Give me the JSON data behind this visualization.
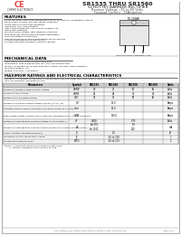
{
  "bg_color": "#f0ede8",
  "page_bg": "#f0ede8",
  "ce_color": "#dd4444",
  "company_name": "CHERRY ELECTRONICS",
  "title": "SR1535 THRU SR1560",
  "subtitle": "SCHOTTKY BARRIER RECTIFIER",
  "subtitle2": "Reverse Voltage - 35 to 60 Volts",
  "subtitle3": "Forward Current - 15Amperes",
  "features_title": "FEATURES",
  "features": [
    "Plastic packaged Low Characteristic Resistance, For monthly Qualification tests in",
    "Metal silicon junction, majority carrier conduction",
    "Guard ring for overvoltage protection",
    "Low power loss, high efficiency",
    "High current capability, Low forward voltage drop",
    "High surge capability",
    "For use in dual voltage, high frequency inverters",
    "Free wheeling, and polarity protection applications",
    "Glass passivation construction",
    "High temperature soldering guaranteed 250/10 seconds",
    "0.375 in lead lengths at 5 lbs tension",
    "2 Plastic insulation structure Common Cathode"
  ],
  "mech_title": "MECHANICAL DATA",
  "mech": [
    "Case: JEDEC DO-220AB molded plastic body",
    "Termination: heat solderable per MIL-STD-750 method 2026",
    "Polarity: As marked for rectifier indication Symbol (cathode, KGRID indicator)",
    "Mounting Position: Any",
    "Weight: 0.08 oz/cc. 1.89 grams"
  ],
  "max_title": "MAXIMUM RATINGS AND ELECTRICAL CHARACTERISTICS",
  "max_note1": "Ratings at 25C ambient temperature unless otherwise specified. Single phase,half wave resistive or inductive",
  "max_note2": "load. For capacitive load derate by 20%",
  "col_headers": [
    "Parameters",
    "Symbol",
    "SR1535",
    "SR1540",
    "SR1550",
    "SR1560",
    "Units"
  ],
  "rows": [
    [
      "Maximum repetitive peak reverse voltage",
      "VRRM",
      "35",
      "40",
      "50",
      "60",
      "Volts"
    ],
    [
      "Maximum RMS voltage",
      "VRMS",
      "25",
      "28",
      "35",
      "42",
      "Volts"
    ],
    [
      "Maximum DC blocking voltage",
      "VDC",
      "35",
      "40",
      "50",
      "60",
      "Volts"
    ],
    [
      "Maximum average forward rectified current (At TC=75)",
      "IO",
      "",
      "15.0",
      "",
      "",
      "Amps"
    ],
    [
      "Repetitive peak forward current(per one amp density at Tj=150)",
      "Iorm",
      "",
      "15.0",
      "",
      "",
      "Amps"
    ],
    [
      "Peak forward surge current 8.3ms single half sinusoidal pulse (At 25C minimum)",
      "IFSM",
      "",
      "150.0",
      "",
      "",
      "Amps"
    ],
    [
      "Maximum instantaneous forward voltage at 15.0A(Note 1)",
      "VF",
      "0.600",
      "",
      "0.75",
      "",
      "Volts"
    ],
    [
      "Maximum instantaneous reverse current at rated DC blocking voltage(Note 1)",
      "IR",
      "At 25C\nAt 100C",
      "",
      "1.0\n200",
      "",
      "mA"
    ],
    [
      "Typical junction capacitance(Note 2)",
      "Cj",
      "",
      "2.5",
      "",
      "",
      "pF"
    ],
    [
      "Operating junction temperature range",
      "Tj",
      "",
      "-55 to 150",
      "",
      "",
      "C"
    ],
    [
      "Storage temperature range",
      "TSTG",
      "",
      "-55 to 175",
      "",
      "",
      "C"
    ]
  ],
  "note1": "NOTE: 1. Pulse test: 300us pulse width 1% duty cycle",
  "note2": "       2. Thermal resistance from junction to case",
  "footer": "Copyright(c) 2000 CHERRY ELECTRONICS SR1535 THRU SR1560 D 168",
  "page_num": "page 1 of 1"
}
